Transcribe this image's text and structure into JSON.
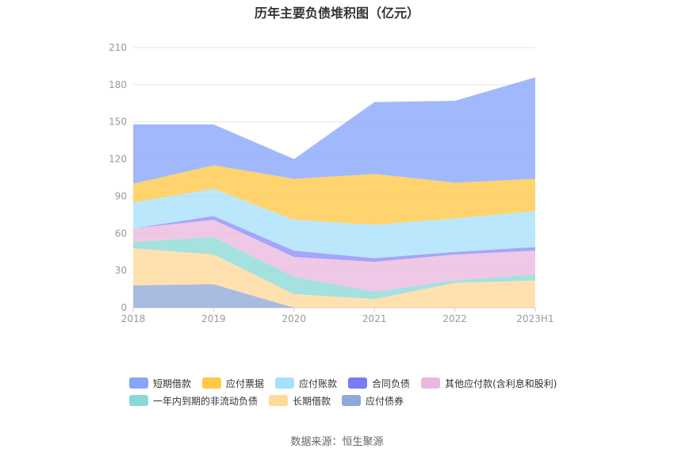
{
  "title": "历年主要负债堆积图（亿元）",
  "source": "数据来源：恒生聚源",
  "chart_data": {
    "type": "area",
    "stacked": true,
    "categories": [
      "2018",
      "2019",
      "2020",
      "2021",
      "2022",
      "2023H1"
    ],
    "ylim": [
      0,
      210
    ],
    "yticks": [
      0,
      30,
      60,
      90,
      120,
      150,
      180,
      210
    ],
    "grid": true,
    "legend_placement": "bottom",
    "series": [
      {
        "name": "应付债券",
        "color": "#8fa9d8",
        "values": [
          18,
          19,
          0,
          0,
          0,
          0
        ]
      },
      {
        "name": "长期借款",
        "color": "#ffd99a",
        "values": [
          30,
          24,
          11,
          7,
          20,
          22
        ]
      },
      {
        "name": "一年内到期的非流动负债",
        "color": "#8ad9d6",
        "values": [
          5,
          14,
          14,
          6,
          2,
          5
        ]
      },
      {
        "name": "其他应付款(含利息和股利)",
        "color": "#eab8de",
        "values": [
          11,
          14,
          16,
          24,
          21,
          19
        ]
      },
      {
        "name": "合同负债",
        "color": "#8c8cf7",
        "values": [
          0,
          3,
          5,
          3,
          2,
          3
        ]
      },
      {
        "name": "应付账款",
        "color": "#a6e0fb",
        "values": [
          21,
          22,
          25,
          27,
          27,
          29
        ]
      },
      {
        "name": "应付票据",
        "color": "#ffc845",
        "values": [
          15,
          19,
          33,
          41,
          29,
          26
        ]
      },
      {
        "name": "短期借款",
        "color": "#87a5fb",
        "values": [
          48,
          33,
          16,
          58,
          66,
          82
        ]
      }
    ]
  },
  "legend": {
    "row1": [
      {
        "name": "短期借款",
        "color": "#87a5fb"
      },
      {
        "name": "应付票据",
        "color": "#ffc845"
      },
      {
        "name": "应付账款",
        "color": "#a6e0fb"
      },
      {
        "name": "合同负债",
        "color": "#7b7bf2"
      },
      {
        "name": "其他应付款(含利息和股利)",
        "color": "#eab8de"
      }
    ],
    "row2": [
      {
        "name": "一年内到期的非流动负债",
        "color": "#8ad9d6"
      },
      {
        "name": "长期借款",
        "color": "#ffd99a"
      },
      {
        "name": "应付债券",
        "color": "#8fa9d8"
      }
    ]
  }
}
